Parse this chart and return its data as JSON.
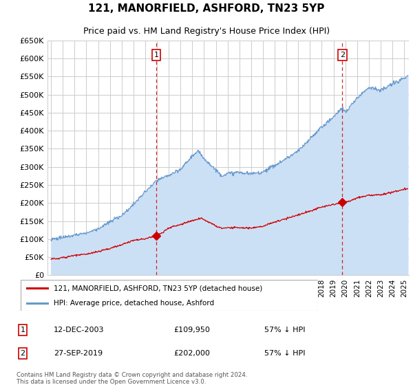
{
  "title": "121, MANORFIELD, ASHFORD, TN23 5YP",
  "subtitle": "Price paid vs. HM Land Registry's House Price Index (HPI)",
  "ylim": [
    0,
    650000
  ],
  "yticks": [
    0,
    50000,
    100000,
    150000,
    200000,
    250000,
    300000,
    350000,
    400000,
    450000,
    500000,
    550000,
    600000,
    650000
  ],
  "ytick_labels": [
    "£0",
    "£50K",
    "£100K",
    "£150K",
    "£200K",
    "£250K",
    "£300K",
    "£350K",
    "£400K",
    "£450K",
    "£500K",
    "£550K",
    "£600K",
    "£650K"
  ],
  "xlim_start": 1994.7,
  "xlim_end": 2025.4,
  "bg_color": "#ffffff",
  "fill_color": "#cce0f5",
  "grid_color": "#cccccc",
  "hpi_line_color": "#6699cc",
  "price_line_color": "#cc0000",
  "vline_color": "#cc0000",
  "marker1_x": 2003.95,
  "marker1_y": 109950,
  "marker1_label": "1",
  "marker1_date": "12-DEC-2003",
  "marker1_price": "£109,950",
  "marker1_note": "57% ↓ HPI",
  "marker2_x": 2019.75,
  "marker2_y": 202000,
  "marker2_label": "2",
  "marker2_date": "27-SEP-2019",
  "marker2_price": "£202,000",
  "marker2_note": "57% ↓ HPI",
  "legend_line1": "121, MANORFIELD, ASHFORD, TN23 5YP (detached house)",
  "legend_line2": "HPI: Average price, detached house, Ashford",
  "footer": "Contains HM Land Registry data © Crown copyright and database right 2024.\nThis data is licensed under the Open Government Licence v3.0."
}
